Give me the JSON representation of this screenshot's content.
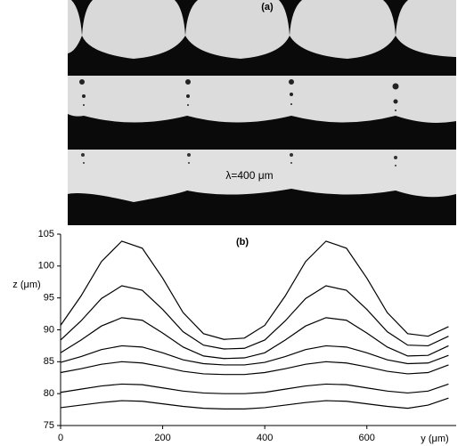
{
  "figure_a": {
    "label": "(a)",
    "annotation": "λ=400 μm"
  },
  "chart_data": {
    "type": "line",
    "title": "(b)",
    "x_label": "y (μm)",
    "y_label": "z (μm)",
    "x": [
      0,
      40,
      80,
      120,
      160,
      200,
      240,
      280,
      320,
      360,
      400,
      440,
      480,
      520,
      560,
      600,
      640,
      680,
      720,
      760
    ],
    "series": [
      {
        "color": "#000000",
        "values": [
          90.7,
          95.3,
          100.7,
          103.9,
          102.8,
          98.1,
          92.7,
          89.4,
          88.5,
          88.7,
          90.7,
          95.3,
          100.7,
          103.9,
          102.8,
          98.1,
          92.7,
          89.4,
          89,
          90.5
        ]
      },
      {
        "color": "#000000",
        "values": [
          88.4,
          91.4,
          94.9,
          96.9,
          96.2,
          93.2,
          89.7,
          87.6,
          87,
          87.1,
          88.4,
          91.4,
          94.9,
          96.9,
          96.2,
          93.2,
          89.7,
          87.6,
          87.5,
          89
        ]
      },
      {
        "color": "#000000",
        "values": [
          86.4,
          88.4,
          90.6,
          91.9,
          91.5,
          89.5,
          87.3,
          85.9,
          85.5,
          85.6,
          86.4,
          88.4,
          90.6,
          91.9,
          91.5,
          89.5,
          87.3,
          85.9,
          86,
          87.5
        ]
      },
      {
        "color": "#000000",
        "values": [
          84.9,
          85.8,
          86.9,
          87.5,
          87.3,
          86.4,
          85.3,
          84.7,
          84.5,
          84.5,
          84.9,
          85.8,
          86.9,
          87.5,
          87.3,
          86.4,
          85.3,
          84.7,
          84.8,
          86
        ]
      },
      {
        "color": "#000000",
        "values": [
          83.3,
          83.9,
          84.6,
          85,
          84.8,
          84.2,
          83.5,
          83.1,
          83,
          83,
          83.3,
          83.9,
          84.6,
          85,
          84.8,
          84.2,
          83.5,
          83.1,
          83.3,
          84.5
        ]
      },
      {
        "color": "#000000",
        "values": [
          80.2,
          80.7,
          81.2,
          81.5,
          81.4,
          80.9,
          80.4,
          80.1,
          80,
          80,
          80.2,
          80.7,
          81.2,
          81.5,
          81.4,
          80.9,
          80.4,
          80.1,
          80.4,
          81.5
        ]
      },
      {
        "color": "#000000",
        "values": [
          77.8,
          78.2,
          78.6,
          78.9,
          78.8,
          78.4,
          78,
          77.7,
          77.6,
          77.6,
          77.8,
          78.2,
          78.6,
          78.9,
          78.8,
          78.4,
          78,
          77.7,
          78.2,
          79.3
        ]
      }
    ],
    "xlim": [
      0,
      775
    ],
    "ylim": [
      75,
      105
    ],
    "xticks": [
      0,
      200,
      400,
      600
    ],
    "yticks": [
      75,
      80,
      85,
      90,
      95,
      100,
      105
    ],
    "grid": false
  }
}
